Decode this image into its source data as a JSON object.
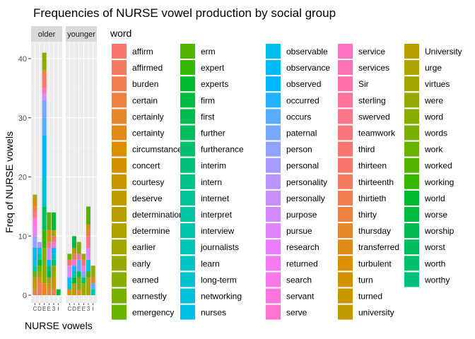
{
  "chart_data": {
    "type": "bar",
    "stacked": true,
    "title": "Frequencies of NURSE vowel production by social group",
    "xlabel": "NURSE vowels",
    "ylabel": "Freq of NURSE vowels",
    "ylim": [
      0,
      43
    ],
    "yticks": [
      0,
      10,
      20,
      30,
      40
    ],
    "grid": true,
    "legend_title": "word",
    "legend_position": "right",
    "facets": [
      "older",
      "younger"
    ],
    "categories": [
      "C",
      "D",
      "E",
      "E",
      "3",
      "I"
    ],
    "words": [
      "affirm",
      "affirmed",
      "burden",
      "certain",
      "certainly",
      "certainty",
      "circumstances",
      "concert",
      "courtesy",
      "deserve",
      "determination",
      "determine",
      "earlier",
      "early",
      "earned",
      "earnestly",
      "emergency",
      "erm",
      "expert",
      "experts",
      "firm",
      "first",
      "further",
      "furtherance",
      "interim",
      "intern",
      "internet",
      "interpret",
      "interview",
      "journalists",
      "learn",
      "long-term",
      "networking",
      "nurses",
      "observable",
      "observance",
      "observed",
      "occurred",
      "occurs",
      "paternal",
      "person",
      "personal",
      "personality",
      "personally",
      "purpose",
      "pursue",
      "research",
      "returned",
      "search",
      "servant",
      "serve",
      "service",
      "services",
      "Sir",
      "sterling",
      "swerved",
      "teamwork",
      "third",
      "thirteen",
      "thirteenth",
      "thirtieth",
      "thirty",
      "thursday",
      "transferred",
      "turbulent",
      "turn",
      "turned",
      "university",
      "University",
      "urge",
      "virtues",
      "were",
      "word",
      "words",
      "work",
      "worked",
      "working",
      "world",
      "worse",
      "worship",
      "worst",
      "worth",
      "worthy"
    ],
    "colors": [
      "#F8766D",
      "#F57A5F",
      "#F17E50",
      "#EC823E",
      "#E78629",
      "#E08A15",
      "#DA8E00",
      "#D29200",
      "#CA9600",
      "#C19A00",
      "#B79E00",
      "#ADA200",
      "#A1A500",
      "#95A900",
      "#88AC00",
      "#79AF00",
      "#68B200",
      "#53B400",
      "#38B700",
      "#00B92F",
      "#00BB40",
      "#00BC50",
      "#00BE5F",
      "#00BF6D",
      "#00C07A",
      "#00C187",
      "#00C294",
      "#00C3A0",
      "#00C3AC",
      "#00C3B8",
      "#00C3C4",
      "#00C2CF",
      "#00C1DA",
      "#00BFE4",
      "#00BDEE",
      "#00BAF7",
      "#00B6FF",
      "#24B2FF",
      "#58ADFF",
      "#78A7FF",
      "#91A2FF",
      "#A69CFF",
      "#B896FF",
      "#C78FFF",
      "#D58AFF",
      "#E184FF",
      "#EB7FFB",
      "#F27BF2",
      "#F877E8",
      "#FC75DD",
      "#FF73D1",
      "#FF72C4",
      "#FF72B7",
      "#FF72A9",
      "#FE739A",
      "#FC758B",
      "#F9777C",
      "#F8766D"
    ],
    "series_older": [
      {
        "cat": 0,
        "segments": [
          [
            2,
            1
          ],
          [
            9,
            2
          ],
          [
            16,
            1
          ],
          [
            27,
            1
          ],
          [
            34,
            3
          ],
          [
            40,
            2
          ],
          [
            47,
            2
          ],
          [
            49,
            1
          ],
          [
            55,
            1
          ],
          [
            60,
            1
          ],
          [
            64,
            1
          ],
          [
            68,
            1
          ]
        ]
      },
      {
        "cat": 1,
        "segments": [
          [
            1,
            2
          ],
          [
            4,
            1
          ],
          [
            12,
            1
          ],
          [
            16,
            1
          ],
          [
            20,
            1
          ],
          [
            27,
            1
          ],
          [
            33,
            1
          ],
          [
            42,
            1
          ]
        ]
      },
      {
        "cat": 2,
        "segments": [
          [
            5,
            2
          ],
          [
            14,
            6
          ],
          [
            18,
            3
          ],
          [
            22,
            4
          ],
          [
            31,
            5
          ],
          [
            36,
            7
          ],
          [
            38,
            3
          ],
          [
            39,
            3
          ],
          [
            44,
            1
          ],
          [
            52,
            1
          ],
          [
            57,
            2
          ],
          [
            61,
            1
          ],
          [
            72,
            3
          ]
        ]
      },
      {
        "cat": 3,
        "segments": [
          [
            3,
            1
          ],
          [
            9,
            1
          ],
          [
            12,
            1
          ],
          [
            20,
            1
          ],
          [
            24,
            1
          ],
          [
            36,
            1
          ],
          [
            44,
            2
          ],
          [
            56,
            1
          ],
          [
            65,
            2
          ],
          [
            75,
            3
          ]
        ]
      },
      {
        "cat": 4,
        "segments": [
          [
            2,
            1
          ],
          [
            8,
            2
          ],
          [
            13,
            2
          ],
          [
            23,
            1
          ],
          [
            30,
            1
          ],
          [
            36,
            1
          ],
          [
            49,
            1
          ],
          [
            59,
            1
          ],
          [
            69,
            1
          ],
          [
            77,
            3
          ]
        ]
      },
      {
        "cat": 5,
        "segments": [
          [
            20,
            1
          ]
        ]
      }
    ],
    "series_younger": [
      {
        "cat": 0,
        "segments": [
          [
            6,
            1
          ],
          [
            31,
            1
          ],
          [
            36,
            1
          ],
          [
            44,
            2
          ],
          [
            57,
            1
          ],
          [
            74,
            1
          ]
        ]
      },
      {
        "cat": 1,
        "segments": [
          [
            10,
            2
          ],
          [
            19,
            1
          ],
          [
            29,
            1
          ],
          [
            37,
            1
          ],
          [
            50,
            1
          ],
          [
            60,
            1
          ],
          [
            68,
            1
          ],
          [
            78,
            2
          ]
        ]
      },
      {
        "cat": 2,
        "segments": [
          [
            4,
            1
          ],
          [
            15,
            2
          ],
          [
            21,
            1
          ],
          [
            38,
            2
          ],
          [
            53,
            1
          ],
          [
            73,
            2
          ]
        ]
      },
      {
        "cat": 3,
        "segments": [
          [
            13,
            2
          ],
          [
            24,
            1
          ],
          [
            39,
            1
          ],
          [
            47,
            1
          ],
          [
            58,
            1
          ],
          [
            70,
            1
          ]
        ]
      },
      {
        "cat": 4,
        "segments": [
          [
            11,
            3
          ],
          [
            17,
            1
          ],
          [
            33,
            2
          ],
          [
            45,
            2
          ],
          [
            55,
            2
          ],
          [
            61,
            1
          ],
          [
            66,
            1
          ],
          [
            75,
            3
          ]
        ]
      },
      {
        "cat": 5,
        "segments": [
          [
            28,
            1
          ],
          [
            38,
            1
          ],
          [
            62,
            1
          ],
          [
            71,
            2
          ]
        ]
      }
    ]
  }
}
